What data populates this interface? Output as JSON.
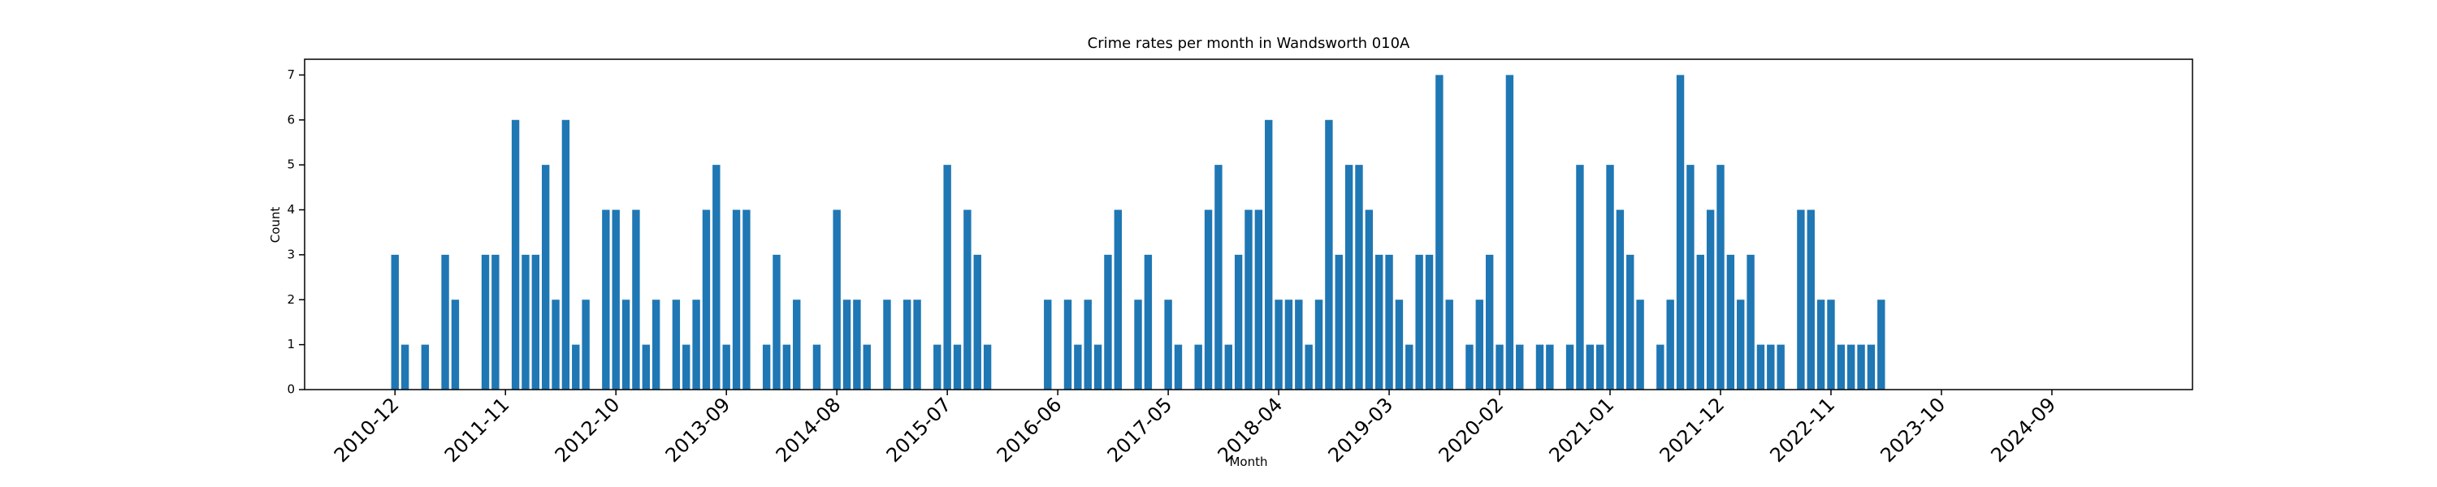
{
  "chart_data": {
    "type": "bar",
    "title": "Crime rates per month in Wandsworth 010A",
    "xlabel": "Month",
    "ylabel": "Count",
    "color": "#1f77b4",
    "x": [
      "2010-12",
      "2011-01",
      "2011-03",
      "2011-05",
      "2011-06",
      "2011-09",
      "2011-10",
      "2011-12",
      "2012-01",
      "2012-02",
      "2012-03",
      "2012-04",
      "2012-05",
      "2012-06",
      "2012-07",
      "2012-09",
      "2012-10",
      "2012-11",
      "2012-12",
      "2013-01",
      "2013-02",
      "2013-04",
      "2013-05",
      "2013-06",
      "2013-07",
      "2013-08",
      "2013-09",
      "2013-10",
      "2013-11",
      "2014-01",
      "2014-02",
      "2014-03",
      "2014-04",
      "2014-06",
      "2014-08",
      "2014-09",
      "2014-10",
      "2014-11",
      "2015-01",
      "2015-03",
      "2015-04",
      "2015-06",
      "2015-07",
      "2015-08",
      "2015-09",
      "2015-10",
      "2015-11",
      "2016-05",
      "2016-07",
      "2016-08",
      "2016-09",
      "2016-10",
      "2016-11",
      "2016-12",
      "2017-02",
      "2017-03",
      "2017-05",
      "2017-06",
      "2017-08",
      "2017-09",
      "2017-10",
      "2017-11",
      "2017-12",
      "2018-01",
      "2018-02",
      "2018-03",
      "2018-04",
      "2018-05",
      "2018-06",
      "2018-07",
      "2018-08",
      "2018-09",
      "2018-10",
      "2018-11",
      "2018-12",
      "2019-01",
      "2019-02",
      "2019-03",
      "2019-04",
      "2019-05",
      "2019-06",
      "2019-07",
      "2019-08",
      "2019-09",
      "2019-11",
      "2019-12",
      "2020-01",
      "2020-02",
      "2020-03",
      "2020-04",
      "2020-06",
      "2020-07",
      "2020-09",
      "2020-10",
      "2020-11",
      "2020-12",
      "2021-01",
      "2021-02",
      "2021-03",
      "2021-04",
      "2021-06",
      "2021-07",
      "2021-08",
      "2021-09",
      "2021-10",
      "2021-11",
      "2021-12",
      "2022-01",
      "2022-02",
      "2022-03",
      "2022-04",
      "2022-05",
      "2022-06",
      "2022-08",
      "2022-09",
      "2022-10",
      "2022-11",
      "2022-12",
      "2023-01",
      "2023-02",
      "2023-03",
      "2023-04"
    ],
    "values": [
      3,
      1,
      1,
      3,
      2,
      3,
      3,
      6,
      3,
      3,
      5,
      2,
      6,
      1,
      2,
      4,
      4,
      2,
      4,
      1,
      2,
      2,
      1,
      2,
      4,
      5,
      1,
      4,
      4,
      1,
      3,
      1,
      2,
      1,
      4,
      2,
      2,
      1,
      2,
      2,
      2,
      1,
      5,
      1,
      4,
      3,
      1,
      2,
      2,
      1,
      2,
      1,
      3,
      4,
      2,
      3,
      2,
      1,
      1,
      4,
      5,
      1,
      3,
      4,
      4,
      6,
      2,
      2,
      2,
      1,
      2,
      6,
      3,
      5,
      5,
      4,
      3,
      3,
      2,
      1,
      3,
      3,
      7,
      2,
      1,
      2,
      3,
      1,
      7,
      1,
      1,
      1,
      1,
      5,
      1,
      1,
      5,
      4,
      3,
      2,
      1,
      2,
      7,
      5,
      3,
      4,
      5,
      3,
      2,
      3,
      1,
      1,
      1,
      4,
      4,
      2,
      2,
      1,
      1,
      1,
      1,
      2
    ],
    "xlim": [
      "2010-03",
      "2025-11"
    ],
    "xticks": [
      "2010-12",
      "2011-11",
      "2012-10",
      "2013-09",
      "2014-08",
      "2015-07",
      "2016-06",
      "2017-05",
      "2018-04",
      "2019-03",
      "2020-02",
      "2021-01",
      "2021-12",
      "2022-11",
      "2023-10",
      "2024-09"
    ],
    "ylim": [
      0,
      7.35
    ],
    "yticks": [
      0,
      1,
      2,
      3,
      4,
      5,
      6,
      7
    ]
  }
}
